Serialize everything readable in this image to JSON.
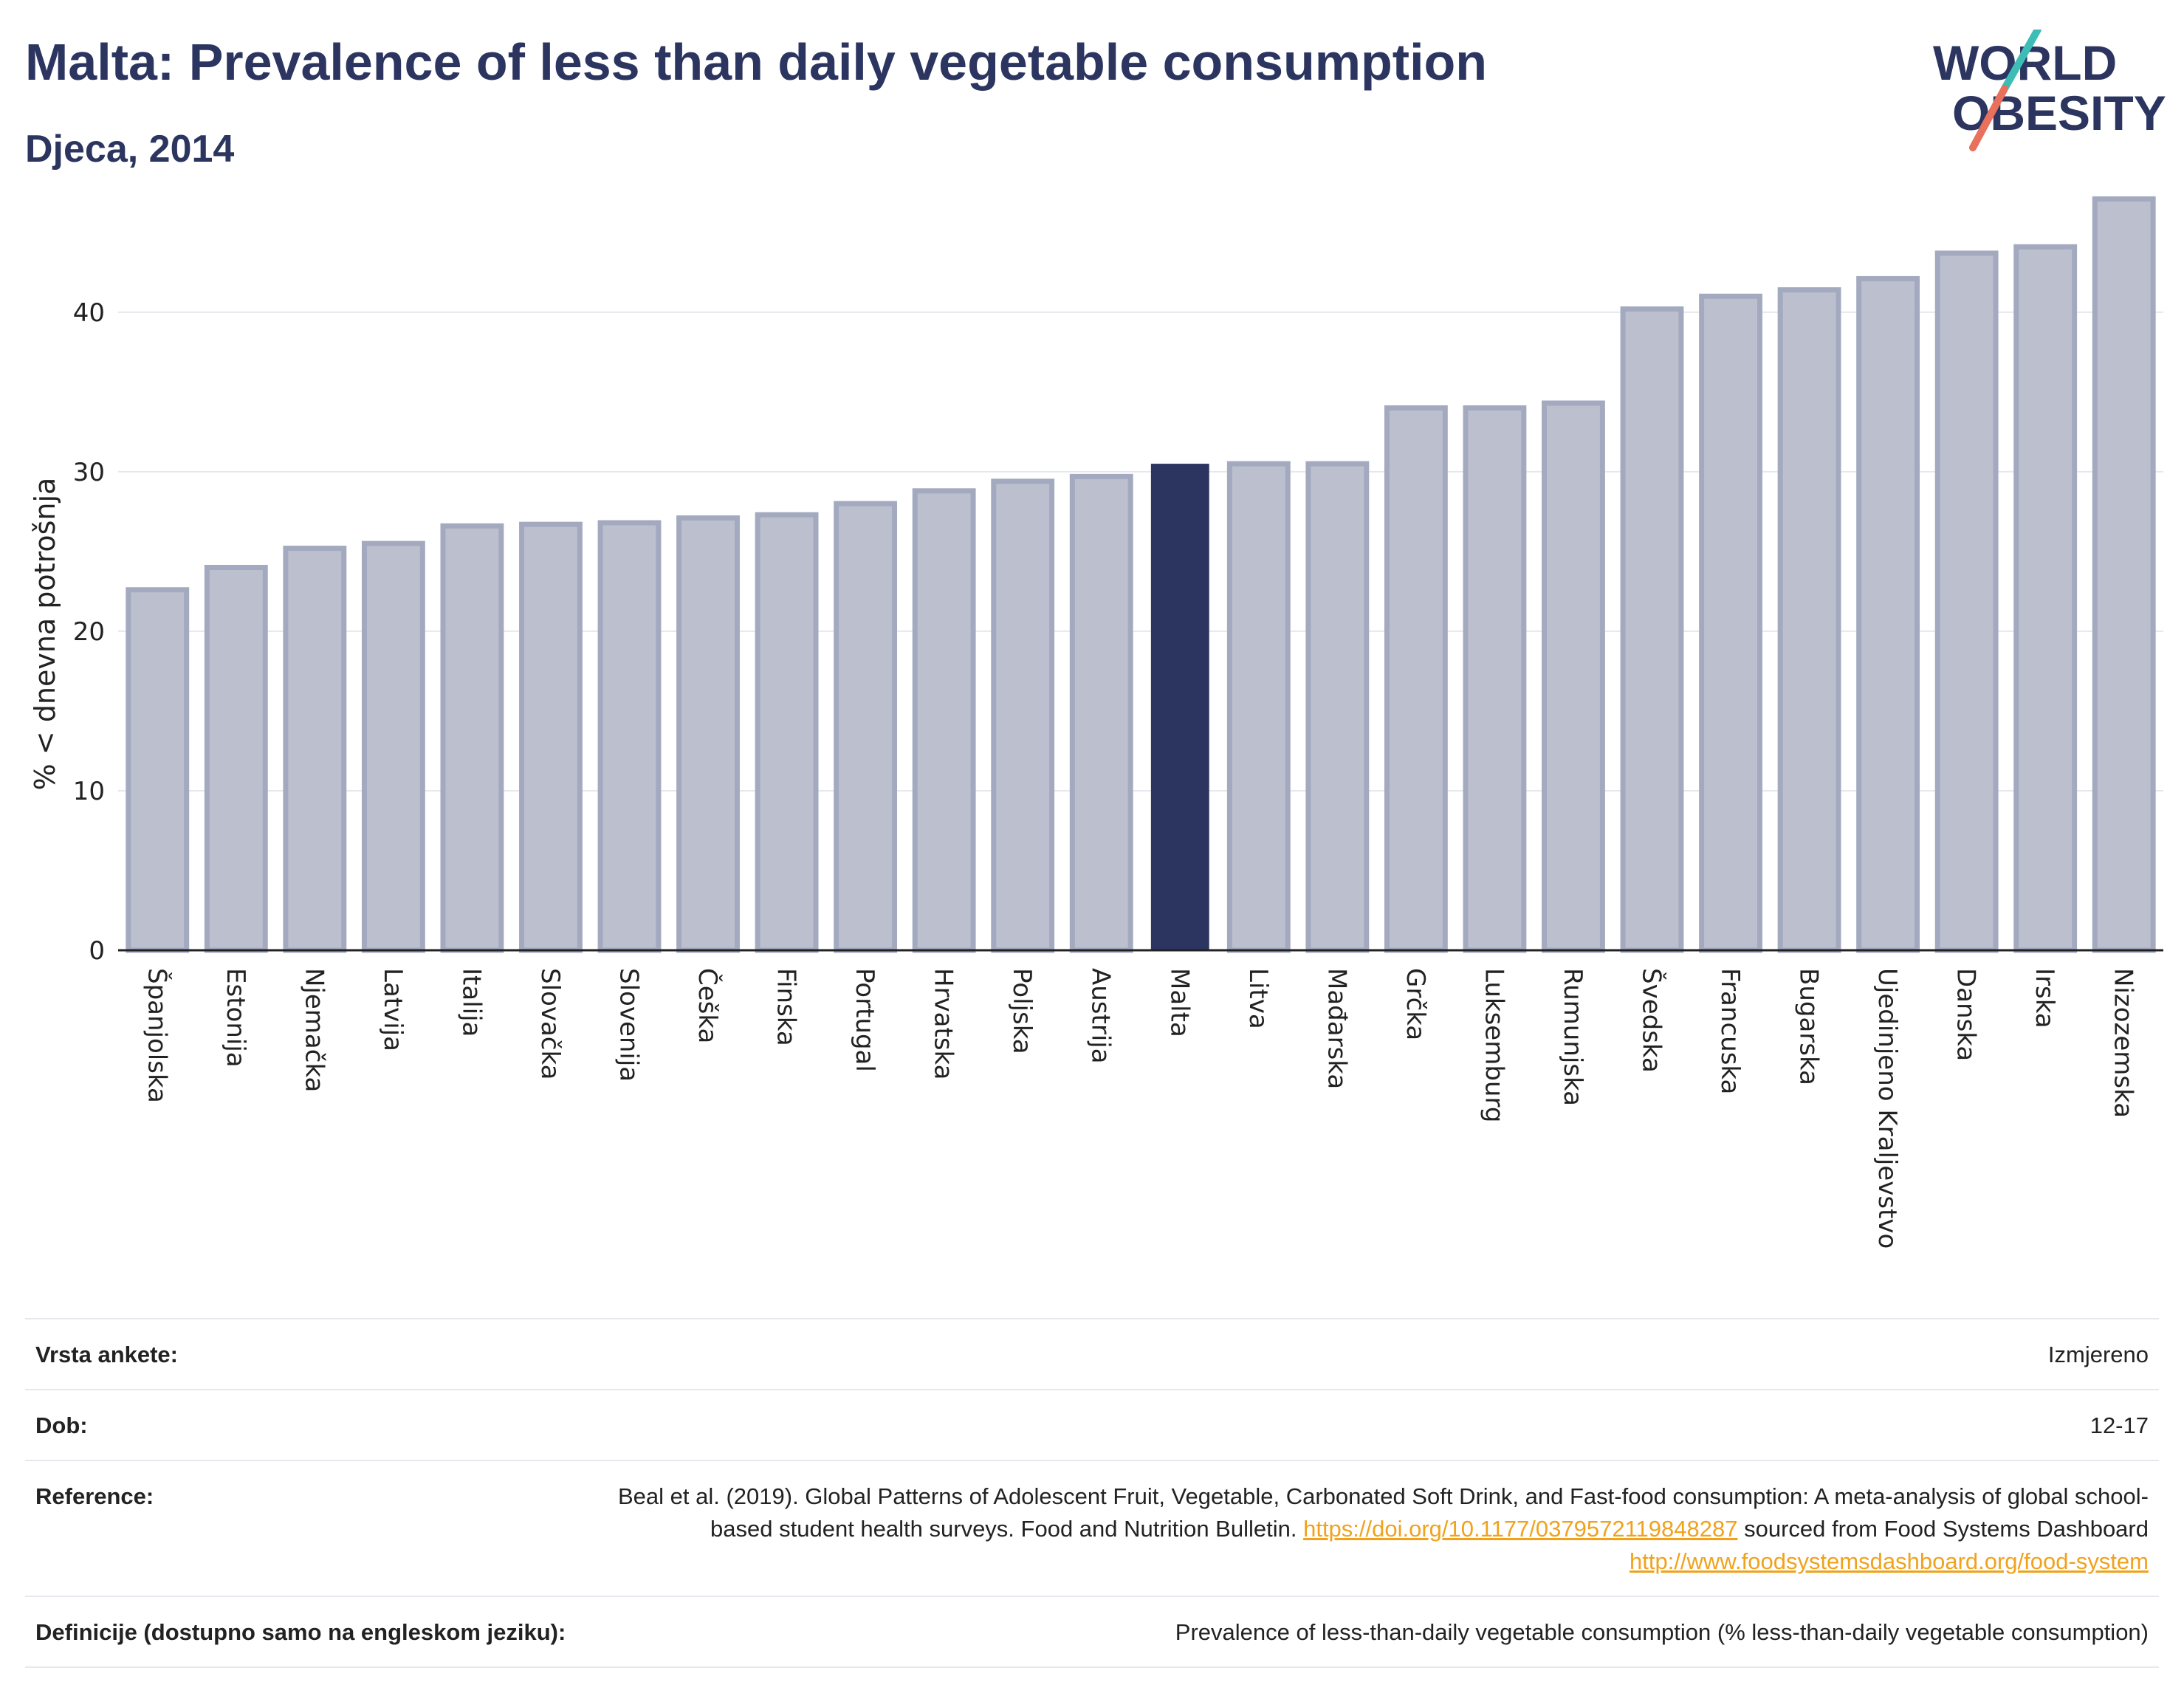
{
  "header": {
    "title": "Malta: Prevalence of less than daily vegetable consumption",
    "subtitle": "Djeca, 2014"
  },
  "logo": {
    "line1": "WORLD",
    "line2": "OBESITY",
    "colors": {
      "text": "#2b3560",
      "slash_top": "#3dbdb5",
      "slash_bottom": "#e8705c"
    }
  },
  "colors": {
    "highlight": "#2b3560",
    "bar_fill": "#bcc0ce",
    "bar_stroke": "#a3a9bf",
    "grid": "#e6e8ee"
  },
  "chart_data": {
    "type": "bar",
    "ylabel": "% < dnevna potrošnja",
    "xlabel": "",
    "ylim": [
      0,
      48
    ],
    "yticks": [
      0,
      10,
      20,
      30,
      40
    ],
    "grid": true,
    "highlight": "Malta",
    "categories": [
      "Španjolska",
      "Estonija",
      "Njemačka",
      "Latvija",
      "Italija",
      "Slovačka",
      "Slovenija",
      "Češka",
      "Finska",
      "Portugal",
      "Hrvatska",
      "Poljska",
      "Austrija",
      "Malta",
      "Litva",
      "Mađarska",
      "Grčka",
      "Luksemburg",
      "Rumunjska",
      "Švedska",
      "Francuska",
      "Bugarska",
      "Ujedinjeno Kraljevstvo",
      "Danska",
      "Irska",
      "Nizozemska"
    ],
    "values": [
      22.6,
      24.0,
      25.2,
      25.5,
      26.6,
      26.7,
      26.8,
      27.1,
      27.3,
      28.0,
      28.8,
      29.4,
      29.7,
      30.5,
      30.5,
      30.5,
      34.0,
      34.0,
      34.3,
      40.2,
      41.0,
      41.4,
      42.1,
      43.7,
      44.1,
      47.1
    ]
  },
  "metadata": {
    "survey_type": {
      "label": "Vrsta ankete:",
      "value": "Izmjereno"
    },
    "age": {
      "label": "Dob:",
      "value": "12-17"
    },
    "reference": {
      "label": "Reference:",
      "text_1": "Beal et al. (2019). Global Patterns of Adolescent Fruit, Vegetable, Carbonated Soft Drink, and Fast-food consumption: A meta-analysis of global school-based student health surveys. Food and Nutrition Bulletin. ",
      "link_1": "https://doi.org/10.1177/0379572119848287",
      "text_2": " sourced from Food Systems Dashboard ",
      "link_2": "http://www.foodsystemsdashboard.org/food-system"
    },
    "definitions": {
      "label": "Definicije (dostupno samo na engleskom jeziku):",
      "value": "Prevalence of less-than-daily vegetable consumption (% less-than-daily vegetable consumption)"
    }
  }
}
